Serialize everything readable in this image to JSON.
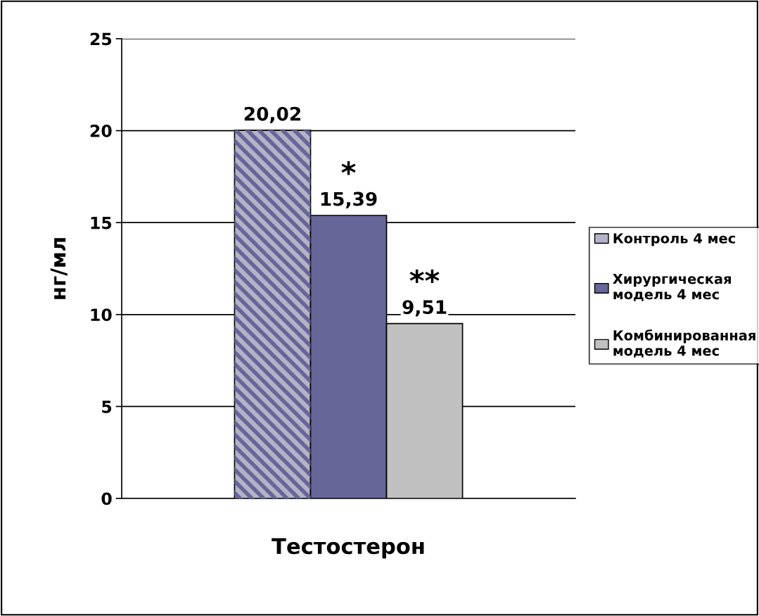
{
  "chart_data": {
    "type": "bar",
    "ylabel": "нг/мл",
    "categories": [
      "Тестостерон"
    ],
    "series": [
      {
        "name": "Контроль 4 мес",
        "color": "#b3b3c8",
        "values": [
          20.02
        ],
        "value_labels": [
          "20,02"
        ]
      },
      {
        "name": "Хирургическая модель 4 мес",
        "color": "#666699",
        "values": [
          15.39
        ],
        "value_labels": [
          "15,39"
        ]
      },
      {
        "name": "Комбинированная модель 4 мес",
        "color": "#c0c0c0",
        "values": [
          9.51
        ],
        "value_labels": [
          "9,51"
        ]
      }
    ],
    "ylim": [
      0,
      25
    ],
    "yticks": [
      0,
      5,
      10,
      15,
      20,
      25
    ],
    "grid": "y",
    "legend": "right",
    "annotations": [
      "*",
      "**"
    ]
  }
}
